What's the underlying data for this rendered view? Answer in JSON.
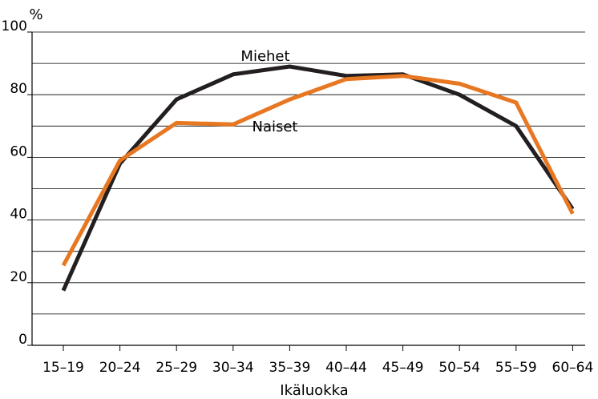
{
  "chart_data": {
    "type": "line",
    "ylabel": "%",
    "xlabel": "Ikäluokka",
    "categories": [
      "15–19",
      "20–24",
      "25–29",
      "30–34",
      "35–39",
      "40–44",
      "45–49",
      "50–54",
      "55–59",
      "60–64"
    ],
    "ylim": [
      0,
      100
    ],
    "yticks": [
      0,
      20,
      40,
      60,
      80,
      100
    ],
    "ygrid_step": 10,
    "grid": true,
    "series": [
      {
        "name": "Miehet",
        "color": "#231f20",
        "values": [
          17.5,
          58,
          78.5,
          86.5,
          89,
          86,
          86.5,
          80,
          70,
          43.5
        ]
      },
      {
        "name": "Naiset",
        "color": "#e87722",
        "values": [
          25.5,
          59,
          71,
          70.5,
          78.5,
          85,
          86,
          83.5,
          77.5,
          42
        ]
      }
    ]
  }
}
